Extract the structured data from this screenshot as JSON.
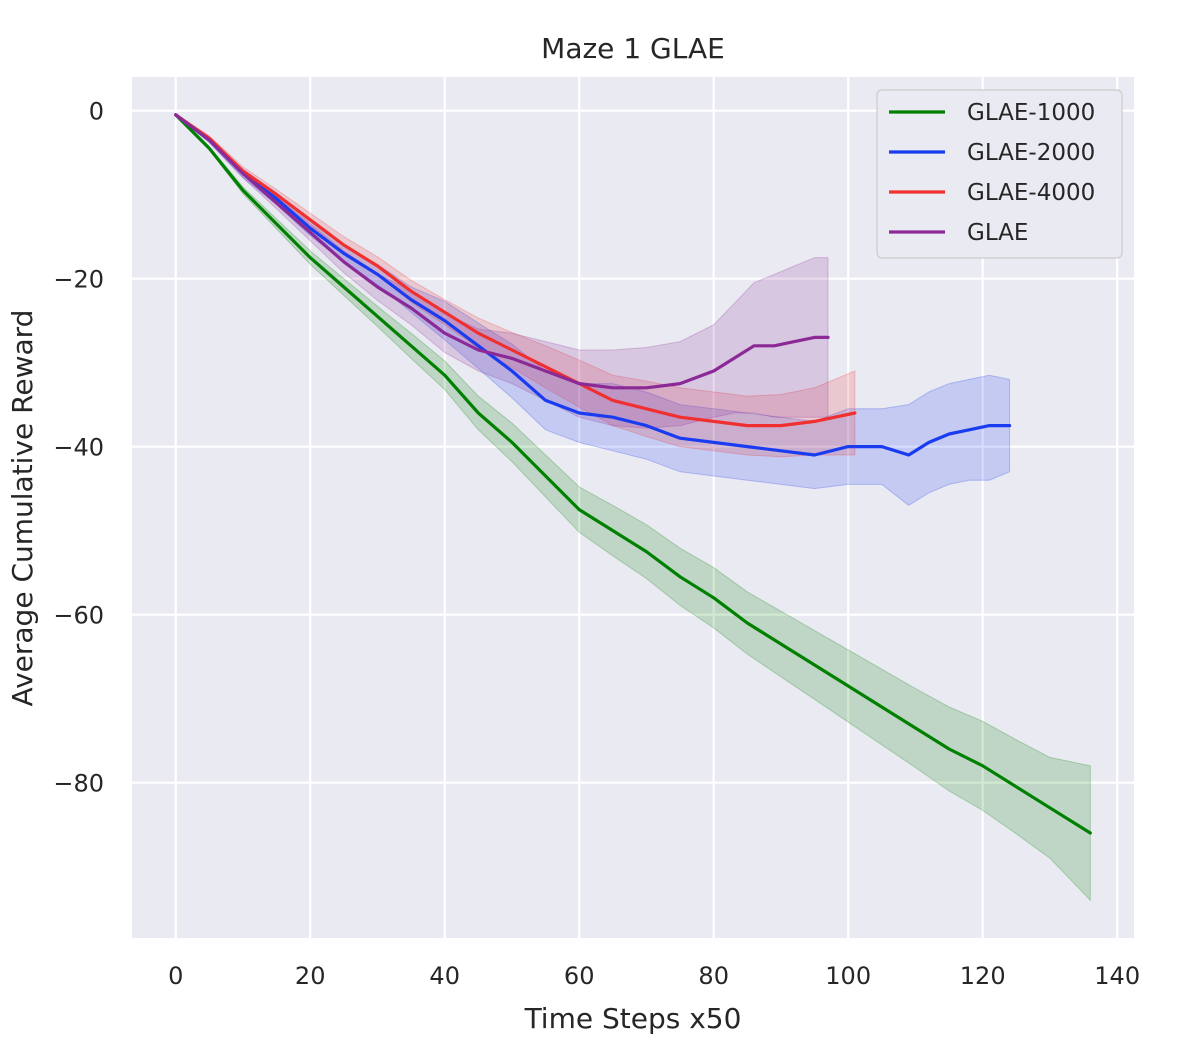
{
  "chart_data": {
    "type": "line",
    "title": "Maze 1 GLAE",
    "xlabel": "Time Steps x50",
    "ylabel": "Average Cumulative Reward",
    "xlim": [
      -6.5,
      142.5
    ],
    "ylim": [
      -98.5,
      4
    ],
    "xticks": [
      0,
      20,
      40,
      60,
      80,
      100,
      120,
      140
    ],
    "yticks": [
      0,
      -20,
      -40,
      -60,
      -80
    ],
    "xtick_labels": [
      "0",
      "20",
      "40",
      "60",
      "80",
      "100",
      "120",
      "140"
    ],
    "ytick_labels": [
      "0",
      "−20",
      "−40",
      "−60",
      "−80"
    ],
    "grid": true,
    "legend_position": "top-right",
    "series": [
      {
        "name": "GLAE-1000",
        "color": "#008000",
        "x": [
          0,
          5,
          10,
          15,
          20,
          25,
          30,
          35,
          40,
          45,
          50,
          55,
          60,
          65,
          70,
          75,
          80,
          85,
          90,
          95,
          100,
          105,
          110,
          115,
          120,
          125,
          130,
          136
        ],
        "y": [
          -0.5,
          -4.5,
          -9.5,
          -13.5,
          -17.5,
          -21,
          -24.5,
          -28,
          -31.5,
          -36,
          -39.5,
          -43.5,
          -47.5,
          -50,
          -52.5,
          -55.5,
          -58,
          -61,
          -63.5,
          -66,
          -68.5,
          -71,
          -73.5,
          -76,
          -78,
          -80.5,
          -83,
          -86
        ],
        "lower": [
          -0.6,
          -4.7,
          -9.9,
          -14.1,
          -18.3,
          -22,
          -25.7,
          -29.5,
          -33.2,
          -38,
          -41.8,
          -46,
          -50.2,
          -53,
          -55.7,
          -58.9,
          -61.6,
          -64.7,
          -67.4,
          -70.1,
          -72.8,
          -75.5,
          -78.2,
          -81,
          -83.3,
          -86.1,
          -89,
          -94
        ],
        "upper": [
          -0.4,
          -4.3,
          -9.1,
          -12.9,
          -16.7,
          -20,
          -23.3,
          -26.5,
          -29.8,
          -34,
          -37.2,
          -41,
          -44.8,
          -47,
          -49.3,
          -52.1,
          -54.4,
          -57.3,
          -59.6,
          -61.9,
          -64.2,
          -66.5,
          -68.8,
          -71,
          -72.7,
          -74.9,
          -77,
          -78
        ]
      },
      {
        "name": "GLAE-2000",
        "color": "#1a3cf0",
        "x": [
          0,
          5,
          10,
          15,
          20,
          25,
          30,
          35,
          40,
          45,
          50,
          55,
          60,
          65,
          70,
          75,
          80,
          85,
          90,
          95,
          100,
          105,
          109,
          112,
          115,
          118,
          121,
          124
        ],
        "y": [
          -0.5,
          -3.5,
          -7.5,
          -10.5,
          -14,
          -17,
          -19.5,
          -22.5,
          -25,
          -28,
          -31,
          -34.5,
          -36,
          -36.5,
          -37.5,
          -39,
          -39.5,
          -40,
          -40.5,
          -41,
          -40,
          -40,
          -41,
          -39.5,
          -38.5,
          -38,
          -37.5,
          -37.5
        ],
        "lower": [
          -0.6,
          -3.8,
          -8,
          -11.2,
          -14.9,
          -18,
          -20.7,
          -24,
          -27.3,
          -30.7,
          -34.2,
          -38,
          -39.5,
          -40.5,
          -41.5,
          -43,
          -43.5,
          -44,
          -44.5,
          -45,
          -44.5,
          -44.5,
          -47,
          -45.5,
          -44.5,
          -44,
          -44,
          -43
        ],
        "upper": [
          -0.4,
          -3.2,
          -7,
          -9.8,
          -13.1,
          -16,
          -18.3,
          -21,
          -22.7,
          -25.3,
          -27.8,
          -31,
          -32.5,
          -32.5,
          -33.5,
          -35,
          -35.5,
          -36,
          -36.5,
          -37,
          -35.5,
          -35.5,
          -35,
          -33.5,
          -32.5,
          -32,
          -31.5,
          -32
        ]
      },
      {
        "name": "GLAE-4000",
        "color": "#f03030",
        "x": [
          0,
          5,
          10,
          15,
          20,
          25,
          30,
          35,
          40,
          45,
          50,
          55,
          60,
          65,
          70,
          75,
          80,
          85,
          90,
          95,
          101
        ],
        "y": [
          -0.5,
          -3.3,
          -7.2,
          -10,
          -13,
          -16,
          -18.5,
          -21.5,
          -24,
          -26.5,
          -28.5,
          -30.5,
          -32.5,
          -34.5,
          -35.5,
          -36.5,
          -37,
          -37.5,
          -37.5,
          -37,
          -36
        ],
        "lower": [
          -0.6,
          -3.6,
          -7.7,
          -10.6,
          -13.8,
          -17,
          -19.6,
          -22.8,
          -25.5,
          -28.3,
          -30.6,
          -33,
          -35.3,
          -37.5,
          -38.8,
          -40,
          -40.5,
          -41,
          -41.2,
          -41,
          -41
        ],
        "upper": [
          -0.4,
          -3,
          -6.7,
          -9.4,
          -12.2,
          -15,
          -17.4,
          -20.2,
          -22.5,
          -24.7,
          -26.4,
          -28,
          -29.7,
          -31.5,
          -32.2,
          -33,
          -33.5,
          -34,
          -33.8,
          -33,
          -31
        ]
      },
      {
        "name": "GLAE",
        "color": "#8b2a96",
        "x": [
          0,
          5,
          10,
          15,
          20,
          25,
          30,
          35,
          40,
          45,
          50,
          55,
          60,
          65,
          70,
          75,
          80,
          83,
          86,
          89,
          92,
          95,
          97
        ],
        "y": [
          -0.5,
          -3.5,
          -7.5,
          -11,
          -14.5,
          -18,
          -21,
          -23.5,
          -26.5,
          -28.5,
          -29.5,
          -31,
          -32.5,
          -33,
          -33,
          -32.5,
          -31,
          -29.5,
          -28,
          -28,
          -27.5,
          -27,
          -27
        ],
        "lower": [
          -0.6,
          -3.8,
          -8,
          -11.7,
          -15.5,
          -19.3,
          -22.6,
          -25.5,
          -28.8,
          -31,
          -32.5,
          -34.5,
          -36.5,
          -37.5,
          -37.8,
          -37.5,
          -36.5,
          -36,
          -36,
          -36.5,
          -36.5,
          -36.5,
          -36.5
        ],
        "upper": [
          -0.4,
          -3.2,
          -7,
          -10.3,
          -13.5,
          -16.7,
          -19.4,
          -21.5,
          -24.2,
          -26,
          -26.5,
          -27.5,
          -28.5,
          -28.5,
          -28.2,
          -27.5,
          -25.5,
          -23,
          -20.5,
          -19.5,
          -18.5,
          -17.5,
          -17.5
        ]
      }
    ]
  }
}
